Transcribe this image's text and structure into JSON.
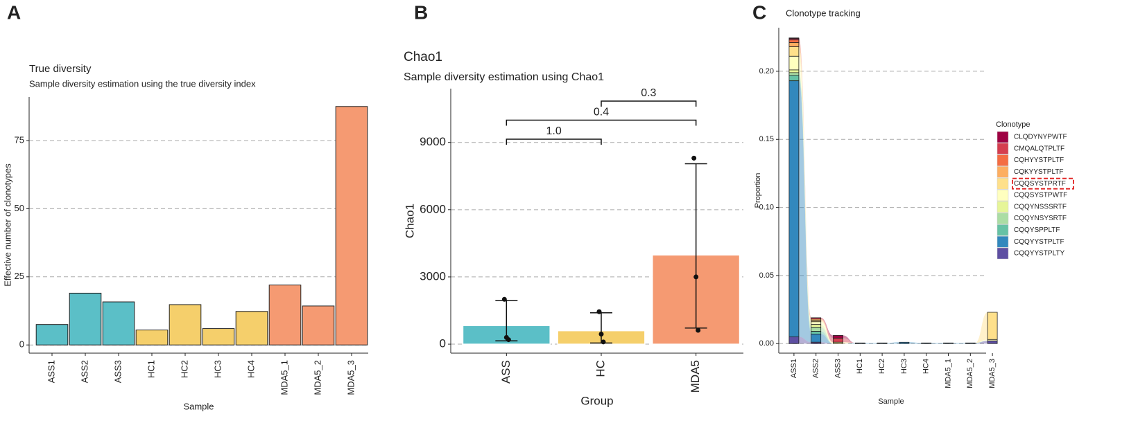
{
  "chart_data": [
    {
      "type": "bar",
      "panel_label": "A",
      "title": "True diversity",
      "subtitle": "Sample diversity estimation using the true diversity index",
      "x_label": "Sample",
      "y_label": "Effective number of clonotypes",
      "categories": [
        "ASS1",
        "ASS2",
        "ASS3",
        "HC1",
        "HC2",
        "HC3",
        "HC4",
        "MDA5_1",
        "MDA5_2",
        "MDA5_3"
      ],
      "values": [
        7.5,
        19,
        15.8,
        5.5,
        14.8,
        6,
        12.3,
        22,
        14.3,
        87.5
      ],
      "colors": [
        "#5bbfc7",
        "#5bbfc7",
        "#5bbfc7",
        "#f5cf6b",
        "#f5cf6b",
        "#f5cf6b",
        "#f5cf6b",
        "#f59a72",
        "#f59a72",
        "#f59a72"
      ],
      "ylim": [
        -3,
        91
      ],
      "yticks": [
        0,
        25,
        50,
        75
      ],
      "grid": true
    },
    {
      "type": "errorbar",
      "panel_label": "B",
      "title": "Chao1",
      "subtitle": "Sample diversity estimation using Chao1",
      "x_label": "Group",
      "y_label": "Chao1",
      "categories": [
        "ASS",
        "HC",
        "MDA5"
      ],
      "values": [
        830,
        600,
        3980
      ],
      "lower": [
        150,
        50,
        720
      ],
      "upper": [
        1950,
        1400,
        8050
      ],
      "points": [
        [
          2000,
          300,
          200
        ],
        [
          1450,
          450,
          100
        ],
        [
          8300,
          3000,
          620
        ]
      ],
      "colors": [
        "#5bbfc7",
        "#f5cf6b",
        "#f59a72"
      ],
      "comparisons": [
        {
          "groups": [
            "ASS",
            "HC"
          ],
          "label": "1.0"
        },
        {
          "groups": [
            "ASS",
            "MDA5"
          ],
          "label": "0.4"
        },
        {
          "groups": [
            "HC",
            "MDA5"
          ],
          "label": "0.3"
        }
      ],
      "ylim": [
        -400,
        11400
      ],
      "yticks": [
        0,
        3000,
        6000,
        9000
      ],
      "grid": true
    },
    {
      "type": "alluvial",
      "panel_label": "C",
      "title": "Clonotype tracking",
      "x_label": "Sample",
      "y_label": "Proportion",
      "legend_title": "Clonotype",
      "categories": [
        "ASS1",
        "ASS2",
        "ASS3",
        "HC1",
        "HC2",
        "HC3",
        "HC4",
        "MDA5_1",
        "MDA5_2",
        "MDA5_3"
      ],
      "series": [
        {
          "name": "CLQDYNYPWTF",
          "color": "#9e0142",
          "values": [
            0.0005,
            0,
            0.002,
            0,
            0,
            0,
            0,
            0,
            0,
            0
          ]
        },
        {
          "name": "CMQALQTPLTF",
          "color": "#d53e4f",
          "values": [
            0.001,
            0.001,
            0.003,
            0,
            0,
            0,
            0,
            0,
            0,
            0
          ]
        },
        {
          "name": "CQHYYSTPLTF",
          "color": "#f46d43",
          "values": [
            0.002,
            0,
            0,
            0,
            0,
            0,
            0,
            0,
            0,
            0
          ]
        },
        {
          "name": "CQKYYSTPLTF",
          "color": "#fdae61",
          "values": [
            0.003,
            0.001,
            0,
            0,
            0,
            0,
            0,
            0,
            0,
            0
          ]
        },
        {
          "name": "CQQSYSTPRTF",
          "color": "#fee08b",
          "values": [
            0.007,
            0.001,
            0.001,
            0,
            0,
            0,
            0,
            0,
            0,
            0.02
          ]
        },
        {
          "name": "CQQSYSTPWTF",
          "color": "#ffffbf",
          "values": [
            0.01,
            0.002,
            0,
            0,
            0,
            0,
            0,
            0,
            0,
            0.001
          ]
        },
        {
          "name": "CQQYNSSSRTF",
          "color": "#e6f598",
          "values": [
            0.002,
            0.002,
            0,
            0,
            0,
            0,
            0,
            0,
            0,
            0
          ]
        },
        {
          "name": "CQQYNSYSRTF",
          "color": "#abdda4",
          "values": [
            0.002,
            0.003,
            0,
            0,
            0,
            0,
            0,
            0,
            0,
            0
          ]
        },
        {
          "name": "CQQYSPPLTF",
          "color": "#66c2a5",
          "values": [
            0.004,
            0.002,
            0,
            0,
            0,
            0,
            0,
            0,
            0,
            0
          ]
        },
        {
          "name": "CQQYYSTPLTF",
          "color": "#3288bd",
          "values": [
            0.188,
            0.006,
            0,
            0.0005,
            0.0005,
            0.001,
            0.0005,
            0.0005,
            0.0005,
            0
          ]
        },
        {
          "name": "CQQYYSTPLTY",
          "color": "#5e4fa2",
          "values": [
            0.005,
            0.001,
            0,
            0,
            0,
            0,
            0,
            0,
            0,
            0.002
          ]
        }
      ],
      "highlight_series": 4,
      "ylim": [
        -0.007,
        0.232
      ],
      "yticks": [
        {
          "value": 0,
          "label": "0.00"
        },
        {
          "value": 0.05,
          "label": "0.05"
        },
        {
          "value": 0.1,
          "label": "0.10"
        },
        {
          "value": 0.15,
          "label": "0.15"
        },
        {
          "value": 0.2,
          "label": "0.20"
        }
      ],
      "grid": true
    }
  ]
}
